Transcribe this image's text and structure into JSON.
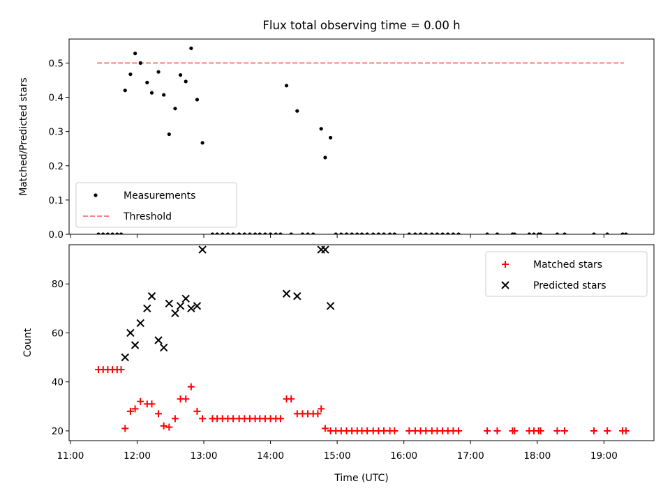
{
  "chart_data": {
    "title": "Flux total observing time = 0.00 h",
    "x_unit": "hours UTC",
    "xlim": [
      10.98,
      19.75
    ],
    "xticks": [
      {
        "value": 11,
        "label": "11:00"
      },
      {
        "value": 12,
        "label": "12:00"
      },
      {
        "value": 13,
        "label": "13:00"
      },
      {
        "value": 14,
        "label": "14:00"
      },
      {
        "value": 15,
        "label": "15:00"
      },
      {
        "value": 16,
        "label": "16:00"
      },
      {
        "value": 17,
        "label": "17:00"
      },
      {
        "value": 18,
        "label": "18:00"
      },
      {
        "value": 19,
        "label": "19:00"
      }
    ],
    "xlabel": "Time (UTC)",
    "panels": [
      {
        "type": "scatter",
        "ylabel": "Matched/Predicted stars",
        "ylim": [
          0,
          0.57
        ],
        "yticks": [
          {
            "value": 0.0,
            "label": "0.0"
          },
          {
            "value": 0.1,
            "label": "0.1"
          },
          {
            "value": 0.2,
            "label": "0.2"
          },
          {
            "value": 0.3,
            "label": "0.3"
          },
          {
            "value": 0.4,
            "label": "0.4"
          },
          {
            "value": 0.5,
            "label": "0.5"
          }
        ],
        "legend": {
          "placement": "lower-left",
          "entries": [
            "Measurements",
            "Threshold"
          ]
        },
        "series": [
          {
            "name": "Measurements",
            "marker": "dot",
            "color": "#000000",
            "points": [
              [
                11.42,
                0
              ],
              [
                11.49,
                0
              ],
              [
                11.56,
                0
              ],
              [
                11.63,
                0
              ],
              [
                11.7,
                0
              ],
              [
                11.76,
                0
              ],
              [
                11.82,
                0.42
              ],
              [
                11.9,
                0.467
              ],
              [
                11.97,
                0.528
              ],
              [
                12.05,
                0.5
              ],
              [
                12.15,
                0.443
              ],
              [
                12.22,
                0.413
              ],
              [
                12.32,
                0.474
              ],
              [
                12.4,
                0.407
              ],
              [
                12.48,
                0.292
              ],
              [
                12.57,
                0.367
              ],
              [
                12.65,
                0.465
              ],
              [
                12.73,
                0.446
              ],
              [
                12.81,
                0.543
              ],
              [
                12.9,
                0.393
              ],
              [
                12.98,
                0.267
              ],
              [
                13.13,
                0
              ],
              [
                13.2,
                0
              ],
              [
                13.28,
                0
              ],
              [
                13.36,
                0
              ],
              [
                13.44,
                0
              ],
              [
                13.53,
                0
              ],
              [
                13.61,
                0
              ],
              [
                13.69,
                0
              ],
              [
                13.77,
                0
              ],
              [
                13.84,
                0
              ],
              [
                13.92,
                0
              ],
              [
                14.0,
                0
              ],
              [
                14.08,
                0
              ],
              [
                14.15,
                0
              ],
              [
                14.24,
                0.434
              ],
              [
                14.4,
                0.36
              ],
              [
                14.31,
                0
              ],
              [
                14.48,
                0
              ],
              [
                14.56,
                0
              ],
              [
                14.64,
                0
              ],
              [
                14.76,
                0.308
              ],
              [
                14.82,
                0.224
              ],
              [
                14.9,
                0.282
              ],
              [
                14.98,
                0
              ],
              [
                15.06,
                0
              ],
              [
                15.14,
                0
              ],
              [
                15.22,
                0
              ],
              [
                15.3,
                0
              ],
              [
                15.37,
                0
              ],
              [
                15.45,
                0
              ],
              [
                15.54,
                0
              ],
              [
                15.62,
                0
              ],
              [
                15.7,
                0
              ],
              [
                15.79,
                0
              ],
              [
                15.86,
                0
              ],
              [
                16.08,
                0
              ],
              [
                16.17,
                0
              ],
              [
                16.25,
                0
              ],
              [
                16.33,
                0
              ],
              [
                16.42,
                0
              ],
              [
                16.5,
                0
              ],
              [
                16.58,
                0
              ],
              [
                16.66,
                0
              ],
              [
                16.74,
                0
              ],
              [
                16.82,
                0
              ],
              [
                17.25,
                0
              ],
              [
                17.4,
                0
              ],
              [
                17.63,
                0
              ],
              [
                17.66,
                0
              ],
              [
                17.88,
                0
              ],
              [
                17.95,
                0
              ],
              [
                18.02,
                0
              ],
              [
                18.05,
                0
              ],
              [
                18.3,
                0
              ],
              [
                18.41,
                0
              ],
              [
                18.85,
                0
              ],
              [
                19.05,
                0
              ],
              [
                19.28,
                0
              ],
              [
                19.33,
                0
              ]
            ]
          },
          {
            "name": "Threshold",
            "type": "line",
            "style": "dashed",
            "color": "#ff7f7f",
            "points": [
              [
                11.4,
                0.5
              ],
              [
                19.3,
                0.5
              ]
            ]
          }
        ]
      },
      {
        "type": "scatter",
        "ylabel": "Count",
        "ylim": [
          16,
          96
        ],
        "yticks": [
          {
            "value": 20,
            "label": "20"
          },
          {
            "value": 40,
            "label": "40"
          },
          {
            "value": 60,
            "label": "60"
          },
          {
            "value": 80,
            "label": "80"
          }
        ],
        "legend": {
          "placement": "upper-right",
          "entries": [
            "Matched stars",
            "Predicted stars"
          ]
        },
        "series": [
          {
            "name": "Matched stars",
            "marker": "plus",
            "color": "#ff0000",
            "points": [
              [
                11.42,
                45
              ],
              [
                11.49,
                45
              ],
              [
                11.56,
                45
              ],
              [
                11.63,
                45
              ],
              [
                11.7,
                45
              ],
              [
                11.76,
                45
              ],
              [
                11.82,
                21
              ],
              [
                11.9,
                28
              ],
              [
                11.97,
                29
              ],
              [
                12.05,
                32
              ],
              [
                12.15,
                31
              ],
              [
                12.22,
                31
              ],
              [
                12.32,
                27
              ],
              [
                12.4,
                22
              ],
              [
                12.48,
                21.5
              ],
              [
                12.57,
                25
              ],
              [
                12.65,
                33
              ],
              [
                12.73,
                33
              ],
              [
                12.81,
                38
              ],
              [
                12.9,
                28
              ],
              [
                12.98,
                25
              ],
              [
                13.13,
                25
              ],
              [
                13.2,
                25
              ],
              [
                13.28,
                25
              ],
              [
                13.36,
                25
              ],
              [
                13.44,
                25
              ],
              [
                13.53,
                25
              ],
              [
                13.61,
                25
              ],
              [
                13.69,
                25
              ],
              [
                13.77,
                25
              ],
              [
                13.84,
                25
              ],
              [
                13.92,
                25
              ],
              [
                14.0,
                25
              ],
              [
                14.08,
                25
              ],
              [
                14.15,
                25
              ],
              [
                14.24,
                33
              ],
              [
                14.31,
                33
              ],
              [
                14.4,
                27
              ],
              [
                14.48,
                27
              ],
              [
                14.56,
                27
              ],
              [
                14.64,
                27
              ],
              [
                14.71,
                27
              ],
              [
                14.76,
                29
              ],
              [
                14.82,
                21
              ],
              [
                14.9,
                20
              ],
              [
                14.98,
                20
              ],
              [
                15.06,
                20
              ],
              [
                15.14,
                20
              ],
              [
                15.22,
                20
              ],
              [
                15.3,
                20
              ],
              [
                15.37,
                20
              ],
              [
                15.45,
                20
              ],
              [
                15.54,
                20
              ],
              [
                15.62,
                20
              ],
              [
                15.7,
                20
              ],
              [
                15.79,
                20
              ],
              [
                15.86,
                20
              ],
              [
                16.08,
                20
              ],
              [
                16.17,
                20
              ],
              [
                16.25,
                20
              ],
              [
                16.33,
                20
              ],
              [
                16.42,
                20
              ],
              [
                16.5,
                20
              ],
              [
                16.58,
                20
              ],
              [
                16.66,
                20
              ],
              [
                16.74,
                20
              ],
              [
                16.82,
                20
              ],
              [
                17.25,
                20
              ],
              [
                17.4,
                20
              ],
              [
                17.63,
                20
              ],
              [
                17.66,
                20
              ],
              [
                17.88,
                20
              ],
              [
                17.95,
                20
              ],
              [
                18.02,
                20
              ],
              [
                18.05,
                20
              ],
              [
                18.3,
                20
              ],
              [
                18.41,
                20
              ],
              [
                18.85,
                20
              ],
              [
                19.05,
                20
              ],
              [
                19.28,
                20
              ],
              [
                19.33,
                20
              ]
            ]
          },
          {
            "name": "Predicted stars",
            "marker": "x",
            "color": "#000000",
            "points": [
              [
                11.82,
                50
              ],
              [
                11.9,
                60
              ],
              [
                11.97,
                55
              ],
              [
                12.05,
                64
              ],
              [
                12.15,
                70
              ],
              [
                12.22,
                75
              ],
              [
                12.32,
                57
              ],
              [
                12.4,
                54
              ],
              [
                12.48,
                72
              ],
              [
                12.57,
                68
              ],
              [
                12.65,
                71
              ],
              [
                12.73,
                74
              ],
              [
                12.81,
                70
              ],
              [
                12.9,
                71
              ],
              [
                12.98,
                94
              ],
              [
                14.24,
                76
              ],
              [
                14.4,
                75
              ],
              [
                14.76,
                94
              ],
              [
                14.82,
                94
              ],
              [
                14.9,
                71
              ]
            ]
          }
        ]
      }
    ]
  }
}
